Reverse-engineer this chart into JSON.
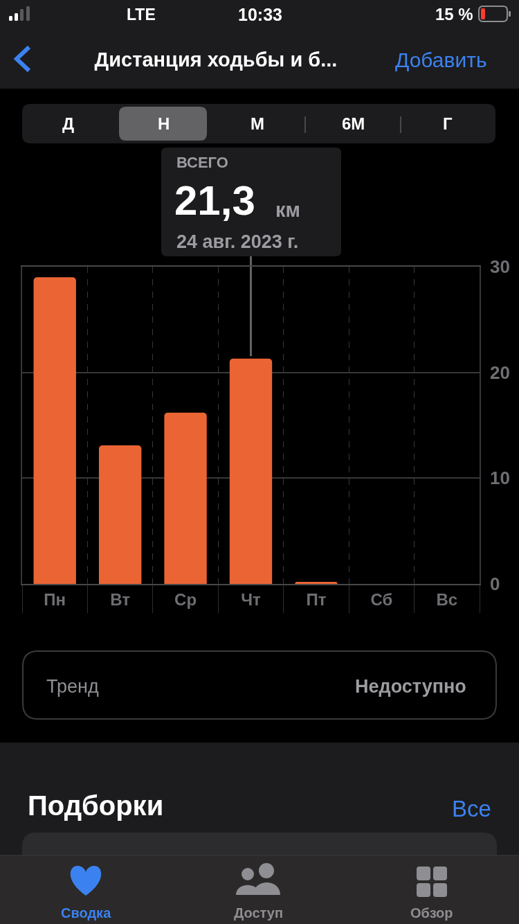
{
  "chart_data": {
    "type": "bar",
    "title": "Дистанция ходьбы и б...",
    "categories": [
      "Пн",
      "Вт",
      "Ср",
      "Чт",
      "Пт",
      "Сб",
      "Вс"
    ],
    "values": [
      29.0,
      13.1,
      16.2,
      21.3,
      0.2,
      null,
      null
    ],
    "color": "#eb6534",
    "ylim": [
      0,
      30
    ],
    "yticks": [
      0,
      10,
      20,
      30
    ],
    "grid": true,
    "annotations": [
      "LTE",
      "10:33",
      "15 %",
      "Добавить",
      "Д",
      "Н",
      "М",
      "6М",
      "Г",
      "ВСЕГО",
      {
        "text": "21,3",
        "x": "Чт",
        "y": 21.3
      },
      "км",
      "24 авг. 2023 г.",
      "Тренд",
      "Недоступно",
      "Подборки",
      "Все",
      "Сводка",
      "Доступ",
      "Обзор"
    ]
  }
}
